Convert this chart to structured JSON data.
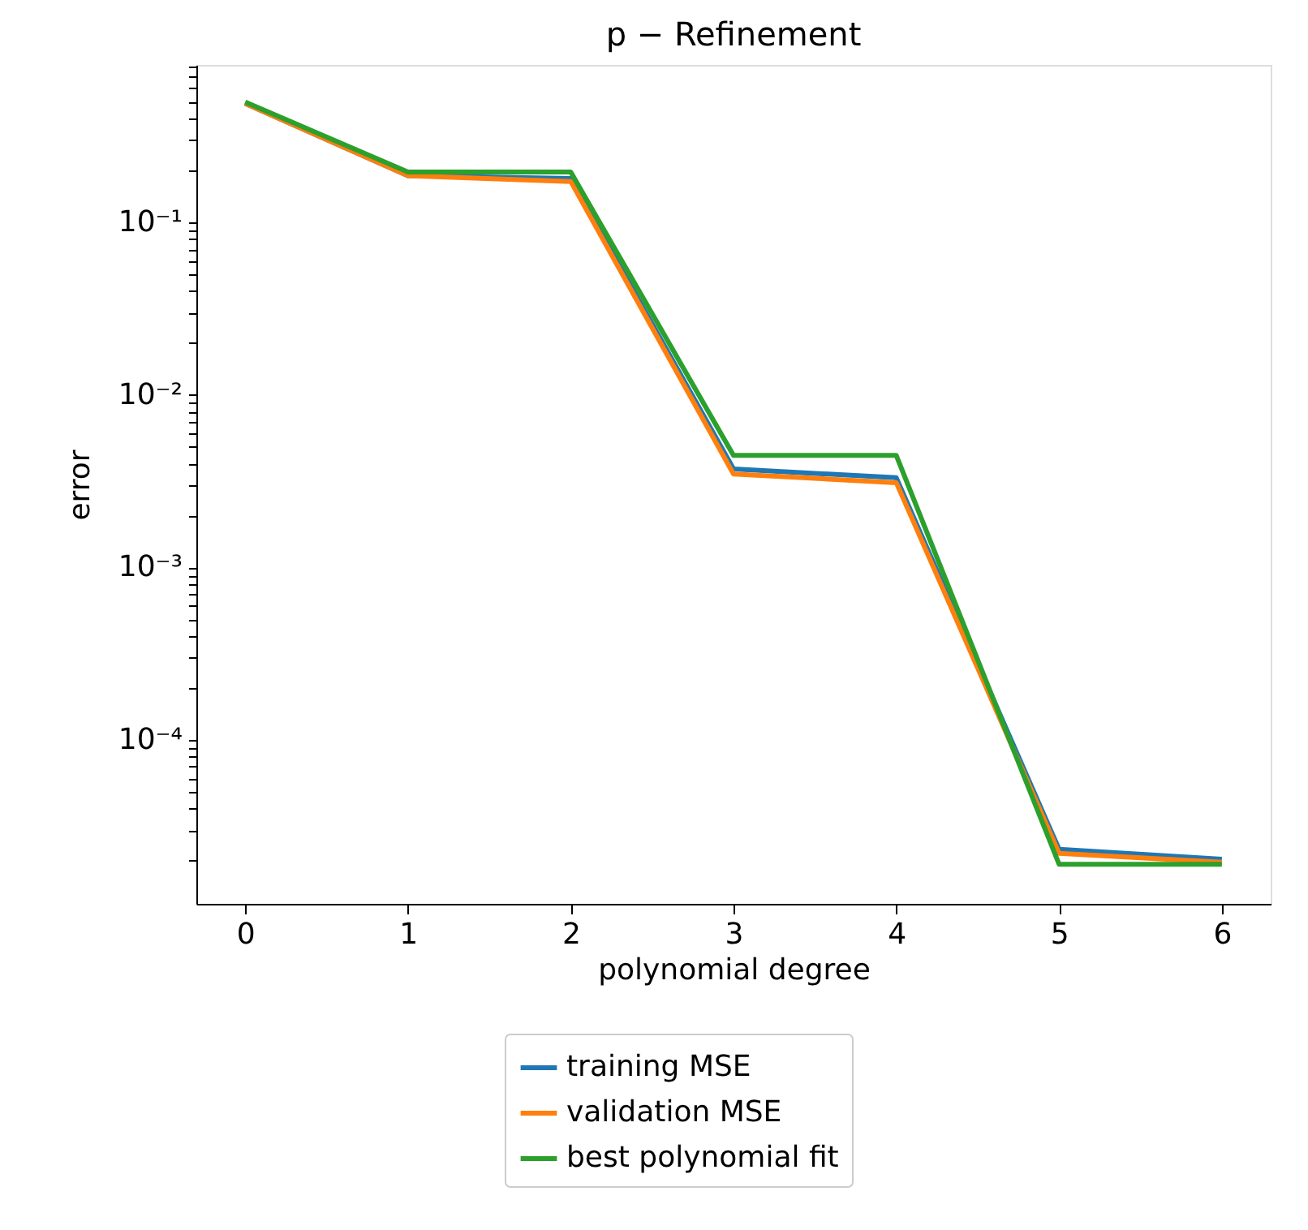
{
  "chart_data": {
    "type": "line",
    "title": "p − Refinement",
    "xlabel": "polynomial degree",
    "ylabel": "error",
    "x": [
      0,
      1,
      2,
      3,
      4,
      5,
      6
    ],
    "series": [
      {
        "name": "training MSE",
        "color": "#1f77b4",
        "values": [
          0.49,
          0.187,
          0.18,
          0.00372,
          0.00331,
          2.32e-05,
          2.03e-05
        ]
      },
      {
        "name": "validation MSE",
        "color": "#ff7f0e",
        "values": [
          0.49,
          0.187,
          0.173,
          0.00348,
          0.0031,
          2.2e-05,
          1.95e-05
        ]
      },
      {
        "name": "best polynomial fit",
        "color": "#2ca02c",
        "values": [
          0.5,
          0.196,
          0.196,
          0.00446,
          0.00446,
          1.9e-05,
          1.9e-05
        ]
      }
    ],
    "log": "y",
    "grid": false,
    "legend": "bottom",
    "marker": "none",
    "line_style": "solid",
    "xlim": [
      -0.3,
      6.3
    ],
    "xticks": [
      0,
      1,
      2,
      3,
      4,
      5,
      6
    ],
    "ylim": [
      1.12e-05,
      0.82
    ],
    "yticks": [
      {
        "value": 2e-05,
        "label": null
      },
      {
        "value": 3e-05,
        "label": null
      },
      {
        "value": 4e-05,
        "label": null
      },
      {
        "value": 5e-05,
        "label": null
      },
      {
        "value": 6e-05,
        "label": null
      },
      {
        "value": 7e-05,
        "label": null
      },
      {
        "value": 8e-05,
        "label": null
      },
      {
        "value": 9e-05,
        "label": null
      },
      {
        "value": 0.0001,
        "label": "10⁻⁴"
      },
      {
        "value": 0.0002,
        "label": null
      },
      {
        "value": 0.0003,
        "label": null
      },
      {
        "value": 0.0004,
        "label": null
      },
      {
        "value": 0.0005,
        "label": null
      },
      {
        "value": 0.0006,
        "label": null
      },
      {
        "value": 0.0007,
        "label": null
      },
      {
        "value": 0.0008,
        "label": null
      },
      {
        "value": 0.0009,
        "label": null
      },
      {
        "value": 0.001,
        "label": "10⁻³"
      },
      {
        "value": 0.002,
        "label": null
      },
      {
        "value": 0.003,
        "label": null
      },
      {
        "value": 0.004,
        "label": null
      },
      {
        "value": 0.005,
        "label": null
      },
      {
        "value": 0.006,
        "label": null
      },
      {
        "value": 0.007,
        "label": null
      },
      {
        "value": 0.008,
        "label": null
      },
      {
        "value": 0.009,
        "label": null
      },
      {
        "value": 0.01,
        "label": "10⁻²"
      },
      {
        "value": 0.02,
        "label": null
      },
      {
        "value": 0.03,
        "label": null
      },
      {
        "value": 0.04,
        "label": null
      },
      {
        "value": 0.05,
        "label": null
      },
      {
        "value": 0.06,
        "label": null
      },
      {
        "value": 0.07,
        "label": null
      },
      {
        "value": 0.08,
        "label": null
      },
      {
        "value": 0.09,
        "label": null
      },
      {
        "value": 0.1,
        "label": "10⁻¹"
      },
      {
        "value": 0.2,
        "label": null
      },
      {
        "value": 0.3,
        "label": null
      },
      {
        "value": 0.4,
        "label": null
      },
      {
        "value": 0.5,
        "label": null
      },
      {
        "value": 0.6,
        "label": null
      },
      {
        "value": 0.7,
        "label": null
      },
      {
        "value": 0.8,
        "label": null
      }
    ]
  }
}
